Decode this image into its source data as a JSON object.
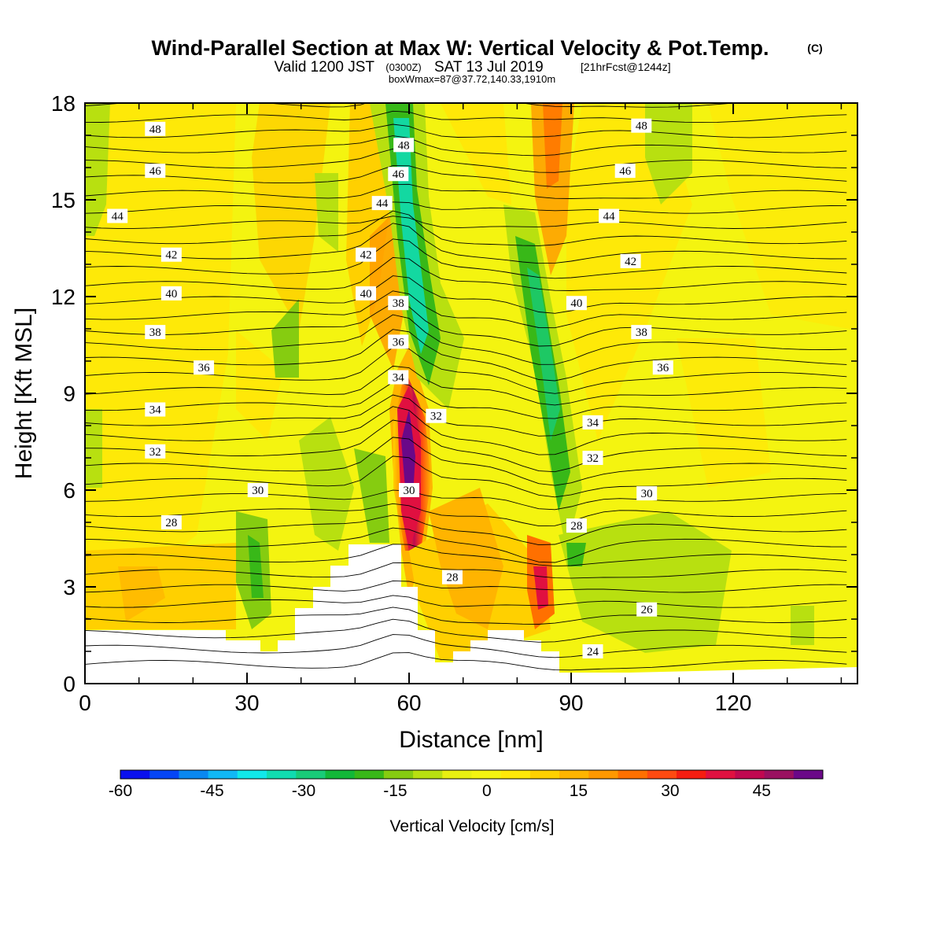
{
  "title": {
    "main": "Wind-Parallel Section at Max W: Vertical Velocity & Pot.Temp.",
    "copyright": "(C)",
    "valid_prefix": "Valid 1200 JST",
    "valid_utc": "(0300Z)",
    "valid_date": "SAT 13 Jul 2019",
    "forecast": "[21hrFcst@1244z]",
    "box": "boxWmax=87@37.72,140.33,1910m"
  },
  "chart_data": {
    "type": "heatmap",
    "xlabel": "Distance [nm]",
    "ylabel": "Height [Kft MSL]",
    "xlim": [
      0,
      143
    ],
    "ylim": [
      0,
      18
    ],
    "xticks": [
      0,
      30,
      60,
      90,
      120
    ],
    "yticks": [
      0,
      3,
      6,
      9,
      12,
      15,
      18
    ],
    "colorbar": {
      "label": "Vertical Velocity [cm/s]",
      "ticks": [
        -60,
        -45,
        -30,
        -15,
        0,
        15,
        30,
        45
      ],
      "colors": [
        "#0a10ee",
        "#0545f5",
        "#0a88f0",
        "#10b8f5",
        "#10e8ea",
        "#10dcb0",
        "#18cc78",
        "#12b838",
        "#38b818",
        "#86cc10",
        "#b8e010",
        "#e8f010",
        "#f4f410",
        "#ffe808",
        "#ffd000",
        "#ffb400",
        "#ff9800",
        "#ff7000",
        "#ff4a10",
        "#f51d10",
        "#e01040",
        "#c00850",
        "#9a1060",
        "#6a0888"
      ]
    },
    "contour_labels": [
      {
        "x": 13,
        "y": 17.2,
        "text": "48"
      },
      {
        "x": 59,
        "y": 16.7,
        "text": "48"
      },
      {
        "x": 103,
        "y": 17.3,
        "text": "48"
      },
      {
        "x": 13,
        "y": 15.9,
        "text": "46"
      },
      {
        "x": 58,
        "y": 15.8,
        "text": "46"
      },
      {
        "x": 100,
        "y": 15.9,
        "text": "46"
      },
      {
        "x": 6,
        "y": 14.5,
        "text": "44"
      },
      {
        "x": 55,
        "y": 14.9,
        "text": "44"
      },
      {
        "x": 97,
        "y": 14.5,
        "text": "44"
      },
      {
        "x": 16,
        "y": 13.3,
        "text": "42"
      },
      {
        "x": 52,
        "y": 13.3,
        "text": "42"
      },
      {
        "x": 101,
        "y": 13.1,
        "text": "42"
      },
      {
        "x": 16,
        "y": 12.1,
        "text": "40"
      },
      {
        "x": 52,
        "y": 12.1,
        "text": "40"
      },
      {
        "x": 91,
        "y": 11.8,
        "text": "40"
      },
      {
        "x": 58,
        "y": 11.8,
        "text": "38"
      },
      {
        "x": 13,
        "y": 10.9,
        "text": "38"
      },
      {
        "x": 103,
        "y": 10.9,
        "text": "38"
      },
      {
        "x": 58,
        "y": 10.6,
        "text": "36"
      },
      {
        "x": 22,
        "y": 9.8,
        "text": "36"
      },
      {
        "x": 107,
        "y": 9.8,
        "text": "36"
      },
      {
        "x": 58,
        "y": 9.5,
        "text": "34"
      },
      {
        "x": 13,
        "y": 8.5,
        "text": "34"
      },
      {
        "x": 94,
        "y": 8.1,
        "text": "34"
      },
      {
        "x": 65,
        "y": 8.3,
        "text": "32"
      },
      {
        "x": 13,
        "y": 7.2,
        "text": "32"
      },
      {
        "x": 94,
        "y": 7.0,
        "text": "32"
      },
      {
        "x": 32,
        "y": 6.0,
        "text": "30"
      },
      {
        "x": 60,
        "y": 6.0,
        "text": "30"
      },
      {
        "x": 104,
        "y": 5.9,
        "text": "30"
      },
      {
        "x": 16,
        "y": 5.0,
        "text": "28"
      },
      {
        "x": 91,
        "y": 4.9,
        "text": "28"
      },
      {
        "x": 68,
        "y": 3.3,
        "text": "28"
      },
      {
        "x": 104,
        "y": 2.3,
        "text": "26"
      },
      {
        "x": 94,
        "y": 1.0,
        "text": "24"
      }
    ]
  }
}
